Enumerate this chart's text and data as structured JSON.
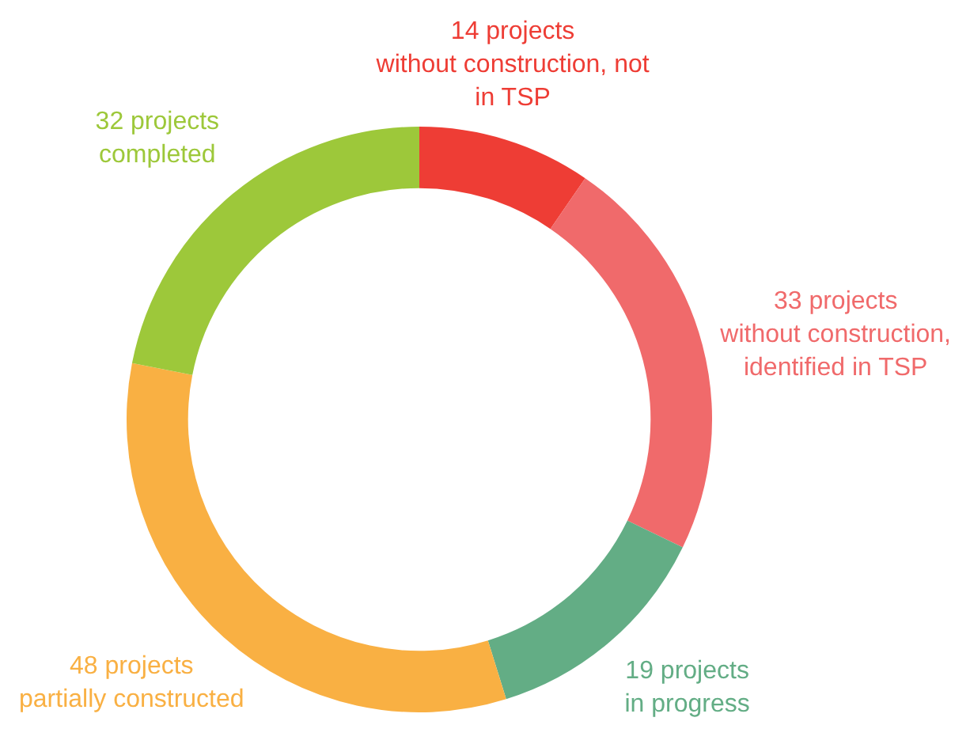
{
  "chart_data": {
    "type": "donut",
    "categories": [
      "without construction, not in TSP",
      "without construction, identified in TSP",
      "in progress",
      "partially constructed",
      "completed"
    ],
    "values": [
      14,
      33,
      19,
      48,
      32
    ],
    "value_labels": [
      "14 projects",
      "33 projects",
      "19 projects",
      "48 projects",
      "32 projects"
    ],
    "colors": [
      "#ee3d35",
      "#f06a6b",
      "#63ad85",
      "#f9b043",
      "#9dc83a"
    ]
  }
}
